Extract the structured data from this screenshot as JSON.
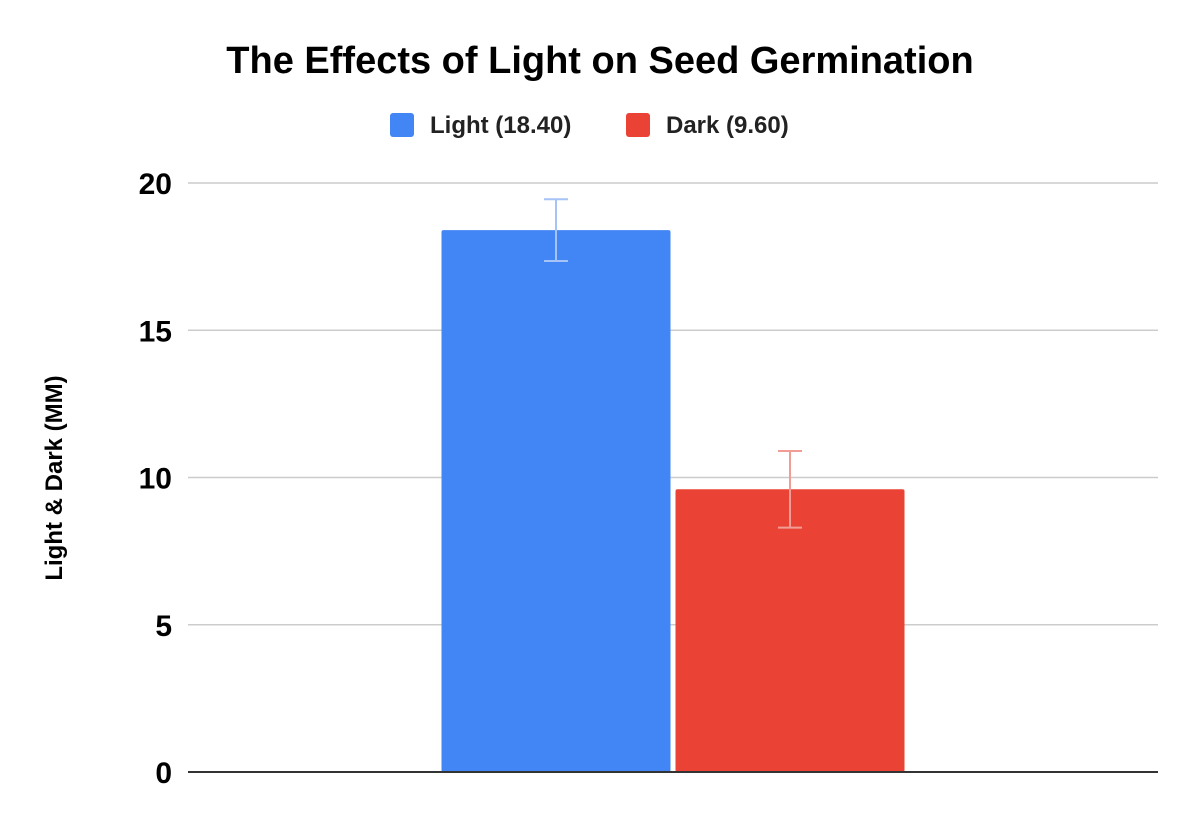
{
  "chart_data": {
    "type": "bar",
    "title": "The Effects of Light on Seed Germination",
    "xlabel": "",
    "ylabel": "Light & Dark (MM)",
    "ylim": [
      0,
      20
    ],
    "yticks": [
      0,
      5,
      10,
      15,
      20
    ],
    "grid": true,
    "legend_position": "top",
    "series": [
      {
        "name": "Light (18.40)",
        "value": 18.4,
        "error_low": 17.35,
        "error_high": 19.45,
        "color": "#4285f4",
        "error_color": "#a6c3f7"
      },
      {
        "name": "Dark (9.60)",
        "value": 9.6,
        "error_low": 8.3,
        "error_high": 10.9,
        "color": "#ea4335",
        "error_color": "#f19d96"
      }
    ]
  }
}
